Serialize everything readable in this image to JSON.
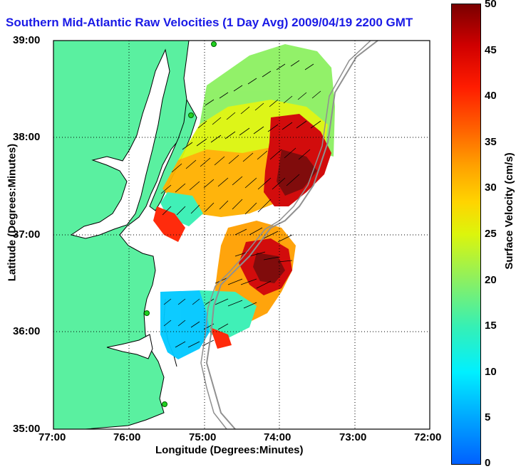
{
  "title": "Southern Mid-Atlantic Raw Velocities (1 Day Avg) 2009/04/19 2200 GMT",
  "axes": {
    "xlabel": "Longitude (Degrees:Minutes)",
    "ylabel": "Latitude (Degrees:Minutes)",
    "xticks": [
      "77:00",
      "76:00",
      "75:00",
      "74:00",
      "73:00",
      "72:00"
    ],
    "yticks": [
      "39:00",
      "38:00",
      "37:00",
      "36:00",
      "35:00"
    ]
  },
  "colorbar": {
    "label": "Surface Velocity (cm/s)",
    "ticks": [
      "50",
      "45",
      "40",
      "35",
      "30",
      "25",
      "20",
      "15",
      "10",
      "5",
      "0"
    ],
    "colors": [
      "#0060ff",
      "#00f0ff",
      "#8cf061",
      "#ffd400",
      "#ff6000",
      "#d00000",
      "#7a0000"
    ]
  },
  "land_color": "#5af0a0",
  "grid": "dotted"
}
